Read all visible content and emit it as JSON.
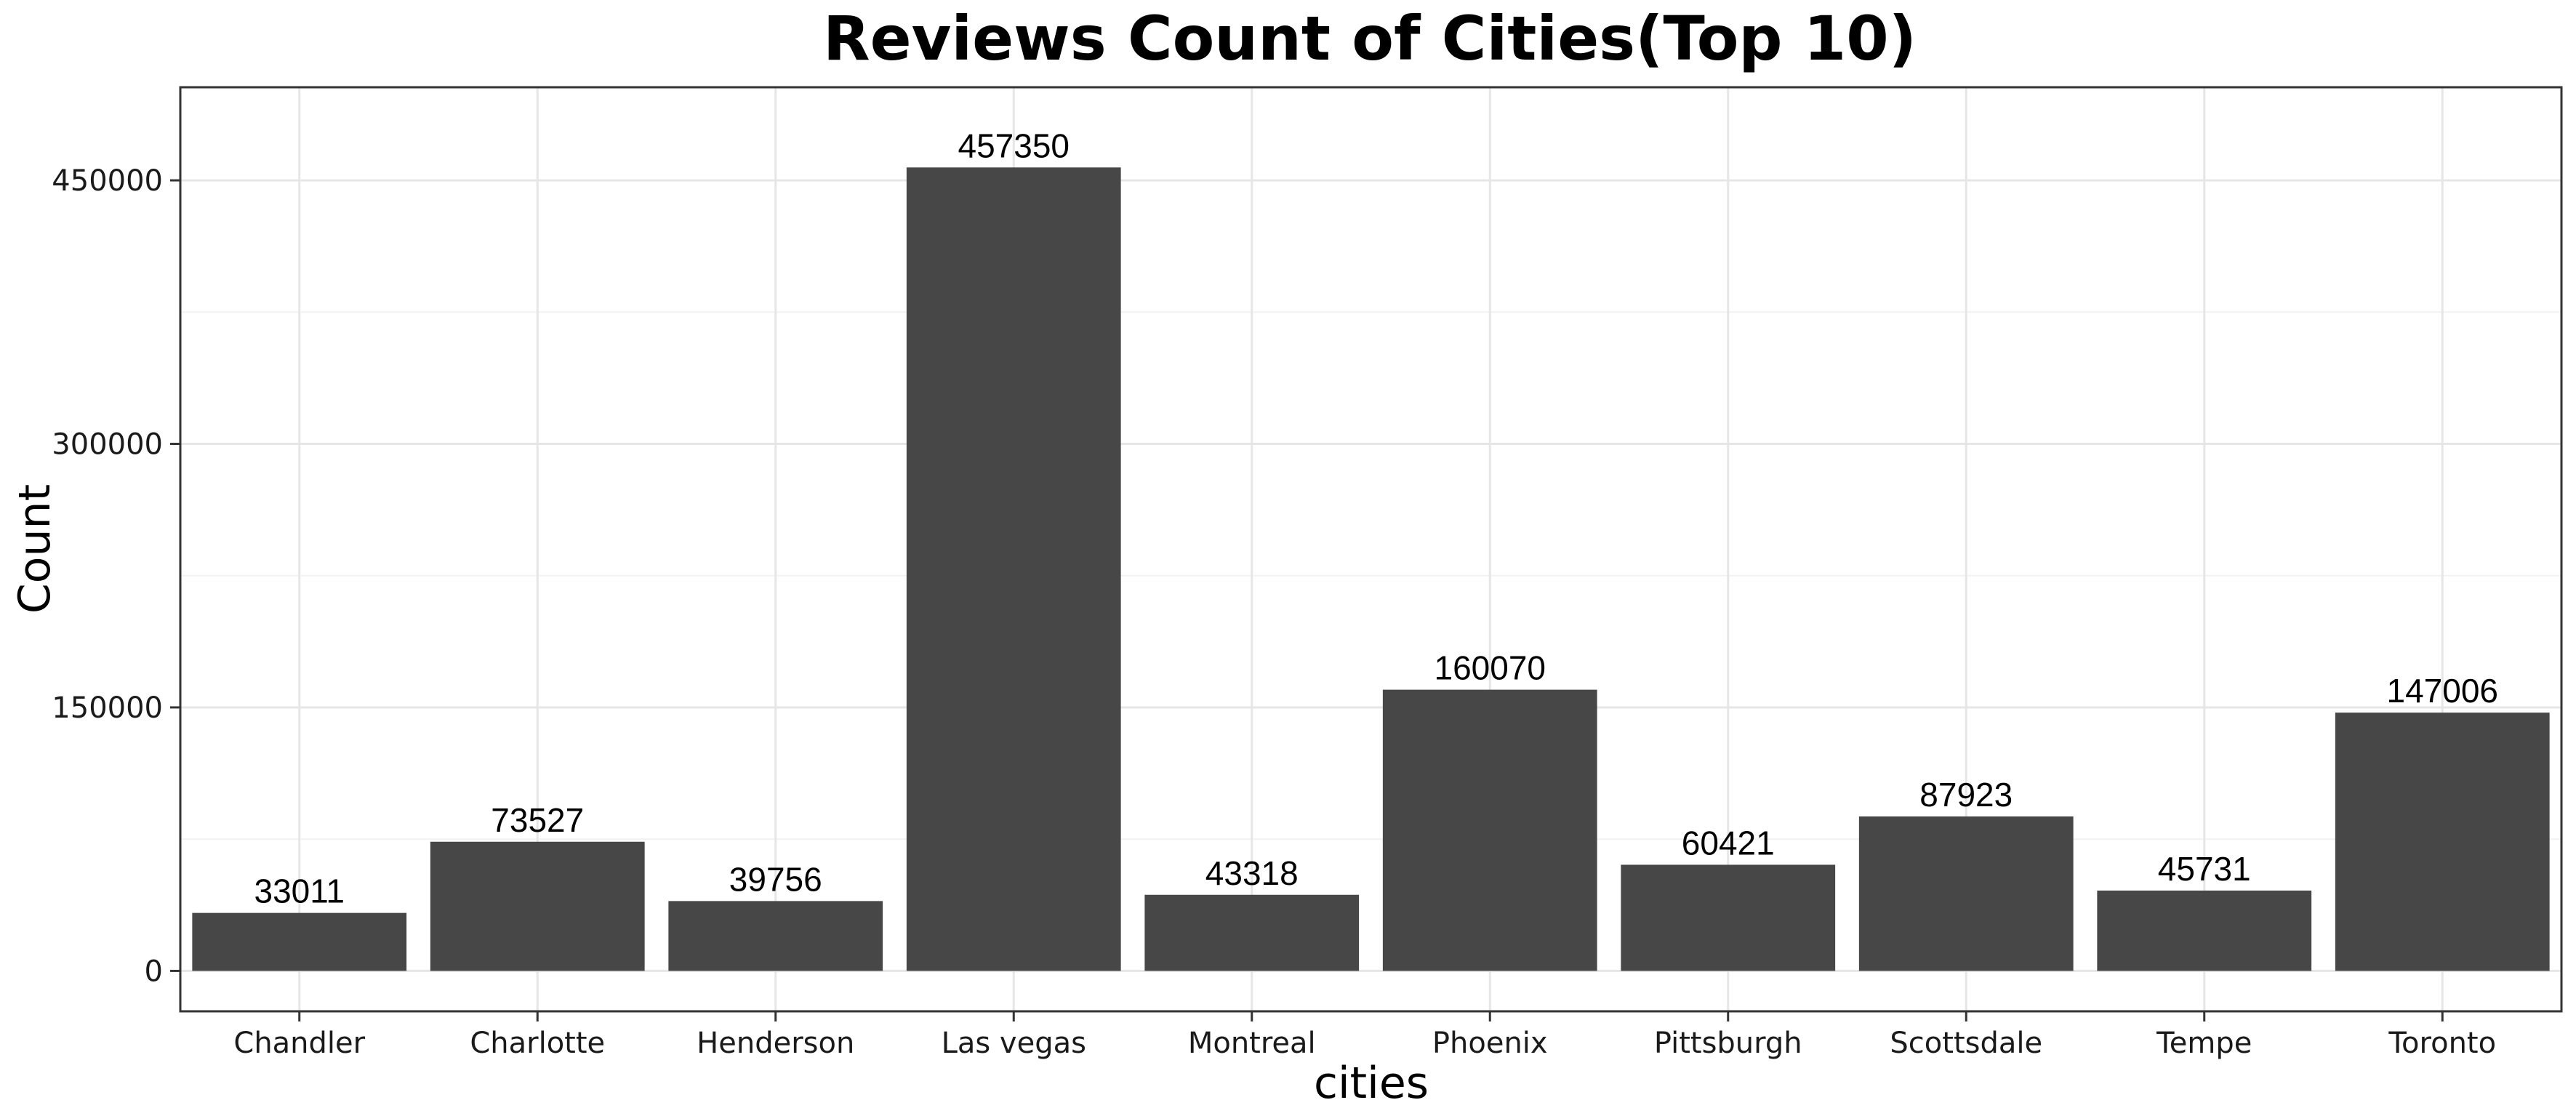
{
  "chart_data": {
    "type": "bar",
    "title": "Reviews Count of Cities(Top 10)",
    "xlabel": "cities",
    "ylabel": "Count",
    "categories": [
      "Chandler",
      "Charlotte",
      "Henderson",
      "Las vegas",
      "Montreal",
      "Phoenix",
      "Pittsburgh",
      "Scottsdale",
      "Tempe",
      "Toronto"
    ],
    "values": [
      33011,
      73527,
      39756,
      457350,
      43318,
      160070,
      60421,
      87923,
      45731,
      147006
    ],
    "data_labels": [
      "33011",
      "73527",
      "39756",
      "457350",
      "43318",
      "160070",
      "60421",
      "87923",
      "45731",
      "147006"
    ],
    "y_ticks": [
      0,
      150000,
      300000,
      450000
    ],
    "y_tick_labels": [
      "0",
      "150000",
      "300000",
      "450000"
    ],
    "ylim": [
      -23000,
      503000
    ],
    "grid": true,
    "legend": "none",
    "colors": {
      "bar": "#474747",
      "grid_major": "#e6e6e6",
      "grid_minor": "#f2f2f2",
      "panel_border": "#333333",
      "background": "#ffffff"
    }
  }
}
